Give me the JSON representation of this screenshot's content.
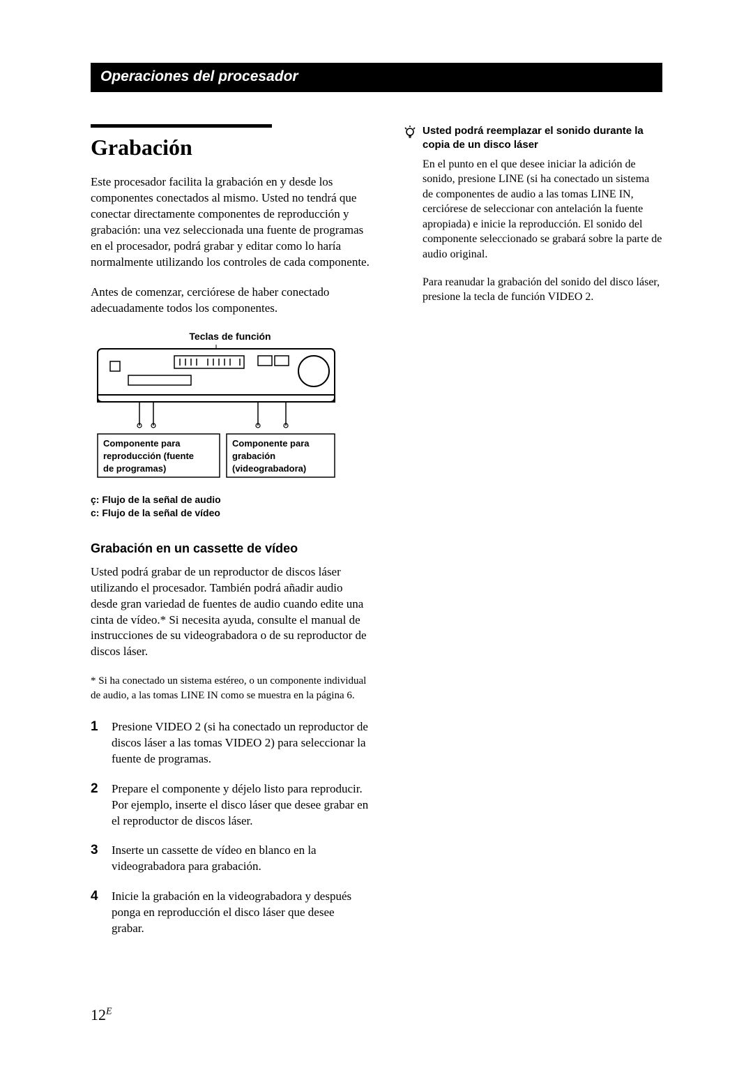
{
  "header": {
    "title": "Operaciones del procesador"
  },
  "main": {
    "h1": "Grabación",
    "intro1": "Este procesador facilita la grabación en y desde los componentes conectados al mismo.  Usted no tendrá que conectar directamente componentes de reproducción y grabación: una vez seleccionada una fuente de programas en el procesador, podrá grabar y editar como lo haría normalmente utilizando los controles de cada componente.",
    "intro2": "Antes de comenzar, cerciórese de haber conectado adecuadamente todos los componentes.",
    "diagram": {
      "caption": "Teclas de función",
      "box_left_l1": "Componente para",
      "box_left_l2": "reproducción (fuente",
      "box_left_l3": "de programas)",
      "box_right_l1": "Componente para",
      "box_right_l2": "grabación",
      "box_right_l3": "(videograbadora)"
    },
    "legend": {
      "line1": "ç: Flujo de la señal de audio",
      "line2": "c: Flujo de la señal de vídeo"
    },
    "h2": "Grabación en un cassette de vídeo",
    "body2": "Usted podrá grabar de un reproductor de discos láser utilizando el procesador. También podrá añadir audio desde gran variedad de fuentes de audio cuando edite una cinta de vídeo.*  Si necesita ayuda, consulte el manual de instrucciones de su videograbadora o de su reproductor de discos láser.",
    "footnote": "*  Si ha conectado un sistema estéreo, o un componente individual de audio, a las tomas LINE IN como se muestra en la página 6.",
    "steps": [
      {
        "n": "1",
        "t": "Presione VIDEO 2 (si ha conectado un reproductor de discos láser a las tomas VIDEO 2) para seleccionar la fuente de programas."
      },
      {
        "n": "2",
        "t": "Prepare el componente y déjelo listo para reproducir.\nPor ejemplo, inserte el disco láser que desee grabar en el reproductor de discos láser."
      },
      {
        "n": "3",
        "t": "Inserte un cassette de vídeo en blanco en la videograbadora para grabación."
      },
      {
        "n": "4",
        "t": "Inicie la grabación en la videograbadora y después ponga en reproducción el disco láser que desee grabar."
      }
    ]
  },
  "tip": {
    "title": "Usted podrá reemplazar el sonido durante la copia de un disco láser",
    "body1": "En el punto en el que desee iniciar la adición de sonido, presione LINE (si ha conectado un sistema de componentes de audio a las tomas LINE IN, cerciórese de seleccionar con antelación la fuente apropiada) e inicie la reproducción. El sonido del componente seleccionado se grabará sobre la parte de audio original.",
    "body2": "Para reanudar la grabación del sonido del disco láser, presione la tecla de función VIDEO 2."
  },
  "page": {
    "num": "12",
    "sup": "E"
  }
}
